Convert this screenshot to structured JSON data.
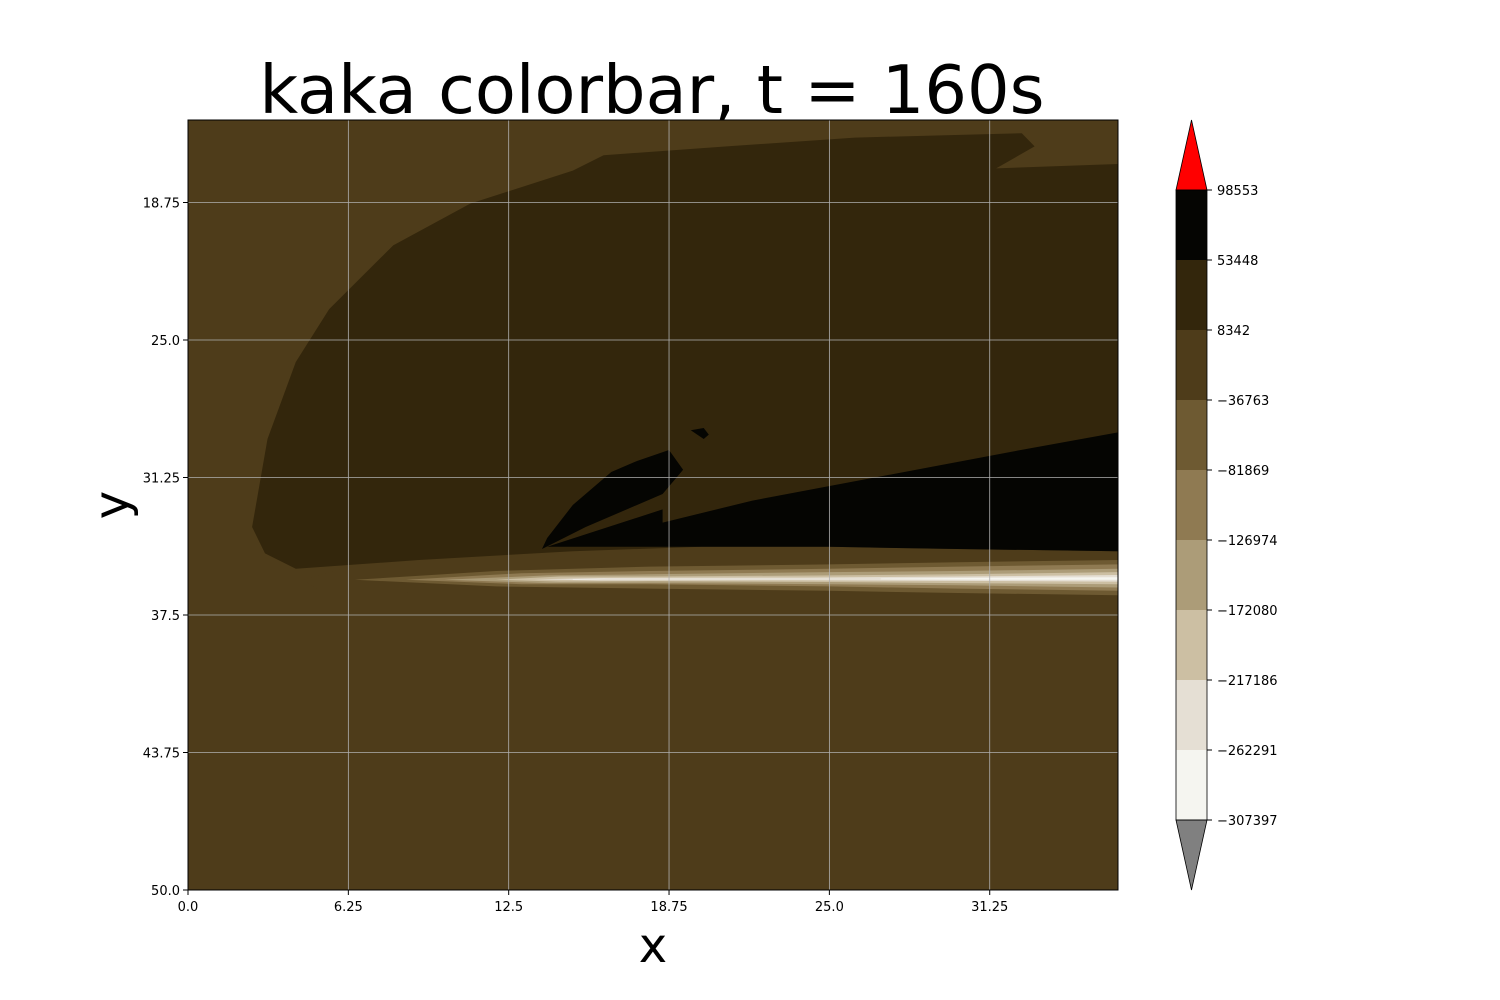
{
  "chart_data": {
    "type": "contour",
    "title": "kaka colorbar, t = 160s",
    "xlabel": "x",
    "ylabel": "y",
    "xlim": [
      0.0,
      36.25
    ],
    "ylim": [
      50.0,
      15.0
    ],
    "y_inverted": true,
    "grid": true,
    "x_ticks": [
      {
        "value": 0.0,
        "label": "0.0"
      },
      {
        "value": 6.25,
        "label": "6.25"
      },
      {
        "value": 12.5,
        "label": "12.5"
      },
      {
        "value": 18.75,
        "label": "18.75"
      },
      {
        "value": 25.0,
        "label": "25.0"
      },
      {
        "value": 31.25,
        "label": "31.25"
      }
    ],
    "y_ticks": [
      {
        "value": 18.75,
        "label": "18.75"
      },
      {
        "value": 25.0,
        "label": "25.0"
      },
      {
        "value": 31.25,
        "label": "31.25"
      },
      {
        "value": 37.5,
        "label": "37.5"
      },
      {
        "value": 43.75,
        "label": "43.75"
      },
      {
        "value": 50.0,
        "label": "50.0"
      }
    ],
    "colorbar": {
      "extend": "both",
      "over_color": "#ff0000",
      "under_color": "#808080",
      "levels": [
        {
          "value": -307397,
          "label": "−307397"
        },
        {
          "value": -262291,
          "label": "−262291"
        },
        {
          "value": -217186,
          "label": "−217186"
        },
        {
          "value": -172080,
          "label": "−172080"
        },
        {
          "value": -126974,
          "label": "−126974"
        },
        {
          "value": -81869,
          "label": "−81869"
        },
        {
          "value": -36763,
          "label": "−36763"
        },
        {
          "value": 8342,
          "label": "8342"
        },
        {
          "value": 53448,
          "label": "53448"
        },
        {
          "value": 98553,
          "label": "98553"
        }
      ],
      "band_colors": [
        "#f5f5f0",
        "#e5dfd4",
        "#ccbfa3",
        "#ac9c78",
        "#8f7a52",
        "#6e5a32",
        "#4e3c1a",
        "#33260c",
        "#050502"
      ]
    },
    "regions": [
      {
        "band": 7,
        "points": [
          [
            4.2,
            35.4
          ],
          [
            9,
            35.0
          ],
          [
            15,
            34.6
          ],
          [
            20,
            34.4
          ],
          [
            25,
            34.4
          ],
          [
            30,
            34.5
          ],
          [
            36.25,
            34.6
          ],
          [
            36.25,
            17.0
          ],
          [
            31.5,
            17.2
          ],
          [
            33,
            16.2
          ],
          [
            32.5,
            15.6
          ],
          [
            26,
            15.8
          ],
          [
            21,
            16.2
          ],
          [
            16.2,
            16.6
          ],
          [
            15,
            17.3
          ],
          [
            11,
            18.8
          ],
          [
            8,
            20.7
          ],
          [
            5.5,
            23.6
          ],
          [
            4.2,
            26.0
          ],
          [
            3.1,
            29.5
          ],
          [
            2.5,
            33.5
          ],
          [
            3.0,
            34.7
          ]
        ]
      },
      {
        "band": 8,
        "points": [
          [
            13.8,
            34.5
          ],
          [
            15.5,
            33.5
          ],
          [
            18.5,
            32.0
          ],
          [
            19.3,
            30.9
          ],
          [
            18.75,
            30.0
          ],
          [
            17.5,
            30.5
          ],
          [
            16.5,
            31.0
          ],
          [
            15.0,
            32.5
          ],
          [
            14.0,
            34.0
          ]
        ]
      },
      {
        "band": 8,
        "points": [
          [
            18.5,
            33.3
          ],
          [
            22,
            32.3
          ],
          [
            27,
            31.2
          ],
          [
            32,
            30.1
          ],
          [
            36.25,
            29.2
          ],
          [
            36.25,
            34.6
          ],
          [
            30,
            34.5
          ],
          [
            25,
            34.4
          ],
          [
            20,
            34.4
          ],
          [
            14.0,
            34.4
          ],
          [
            18.5,
            32.7
          ]
        ]
      },
      {
        "band": 8,
        "points": [
          [
            19.6,
            29.1
          ],
          [
            20.1,
            29.0
          ],
          [
            20.3,
            29.3
          ],
          [
            20.1,
            29.5
          ]
        ]
      },
      {
        "band": 6,
        "points": [
          [
            4.5,
            35.9
          ],
          [
            6,
            35.4
          ],
          [
            12,
            35.2
          ],
          [
            18,
            35.1
          ],
          [
            25,
            35.0
          ],
          [
            30,
            34.9
          ],
          [
            36.25,
            34.8
          ],
          [
            36.25,
            36.9
          ],
          [
            30,
            36.9
          ],
          [
            25,
            36.8
          ],
          [
            20,
            36.8
          ],
          [
            15,
            36.7
          ],
          [
            9,
            36.5
          ],
          [
            5,
            36.3
          ]
        ]
      },
      {
        "band": 5,
        "points": [
          [
            6.5,
            35.9
          ],
          [
            12,
            35.5
          ],
          [
            18,
            35.3
          ],
          [
            25,
            35.2
          ],
          [
            30,
            35.1
          ],
          [
            36.25,
            35.0
          ],
          [
            36.25,
            36.6
          ],
          [
            30,
            36.5
          ],
          [
            25,
            36.4
          ],
          [
            18,
            36.3
          ],
          [
            12,
            36.2
          ]
        ]
      },
      {
        "band": 4,
        "points": [
          [
            8.5,
            35.9
          ],
          [
            13,
            35.6
          ],
          [
            18,
            35.5
          ],
          [
            25,
            35.4
          ],
          [
            30,
            35.3
          ],
          [
            36.25,
            35.2
          ],
          [
            36.25,
            36.4
          ],
          [
            30,
            36.3
          ],
          [
            25,
            36.2
          ],
          [
            18,
            36.1
          ],
          [
            13,
            36.1
          ]
        ]
      },
      {
        "band": 3,
        "points": [
          [
            10,
            35.9
          ],
          [
            14,
            35.7
          ],
          [
            18,
            35.65
          ],
          [
            25,
            35.55
          ],
          [
            30,
            35.5
          ],
          [
            36.25,
            35.4
          ],
          [
            36.25,
            36.25
          ],
          [
            30,
            36.15
          ],
          [
            25,
            36.1
          ],
          [
            18,
            36.05
          ],
          [
            14,
            36.05
          ]
        ]
      },
      {
        "band": 2,
        "points": [
          [
            12,
            35.9
          ],
          [
            14.5,
            35.75
          ],
          [
            18,
            35.75
          ],
          [
            25,
            35.7
          ],
          [
            30,
            35.65
          ],
          [
            36.25,
            35.55
          ],
          [
            36.25,
            36.1
          ],
          [
            30,
            36.05
          ],
          [
            25,
            36.0
          ],
          [
            18,
            35.97
          ],
          [
            14.5,
            35.98
          ]
        ]
      },
      {
        "band": 1,
        "points": [
          [
            13.5,
            35.88
          ],
          [
            16,
            35.82
          ],
          [
            24,
            35.8
          ],
          [
            30,
            35.75
          ],
          [
            36.25,
            35.68
          ],
          [
            36.25,
            35.98
          ],
          [
            30,
            35.95
          ],
          [
            24,
            35.92
          ],
          [
            16,
            35.93
          ]
        ]
      },
      {
        "band": 0,
        "points": [
          [
            15,
            35.88
          ],
          [
            16.5,
            35.85
          ],
          [
            15,
            35.91
          ]
        ]
      },
      {
        "band": 0,
        "points": [
          [
            27,
            35.84
          ],
          [
            32,
            35.8
          ],
          [
            36.25,
            35.78
          ],
          [
            36.25,
            35.9
          ],
          [
            32,
            35.9
          ],
          [
            27,
            35.88
          ]
        ]
      }
    ]
  }
}
